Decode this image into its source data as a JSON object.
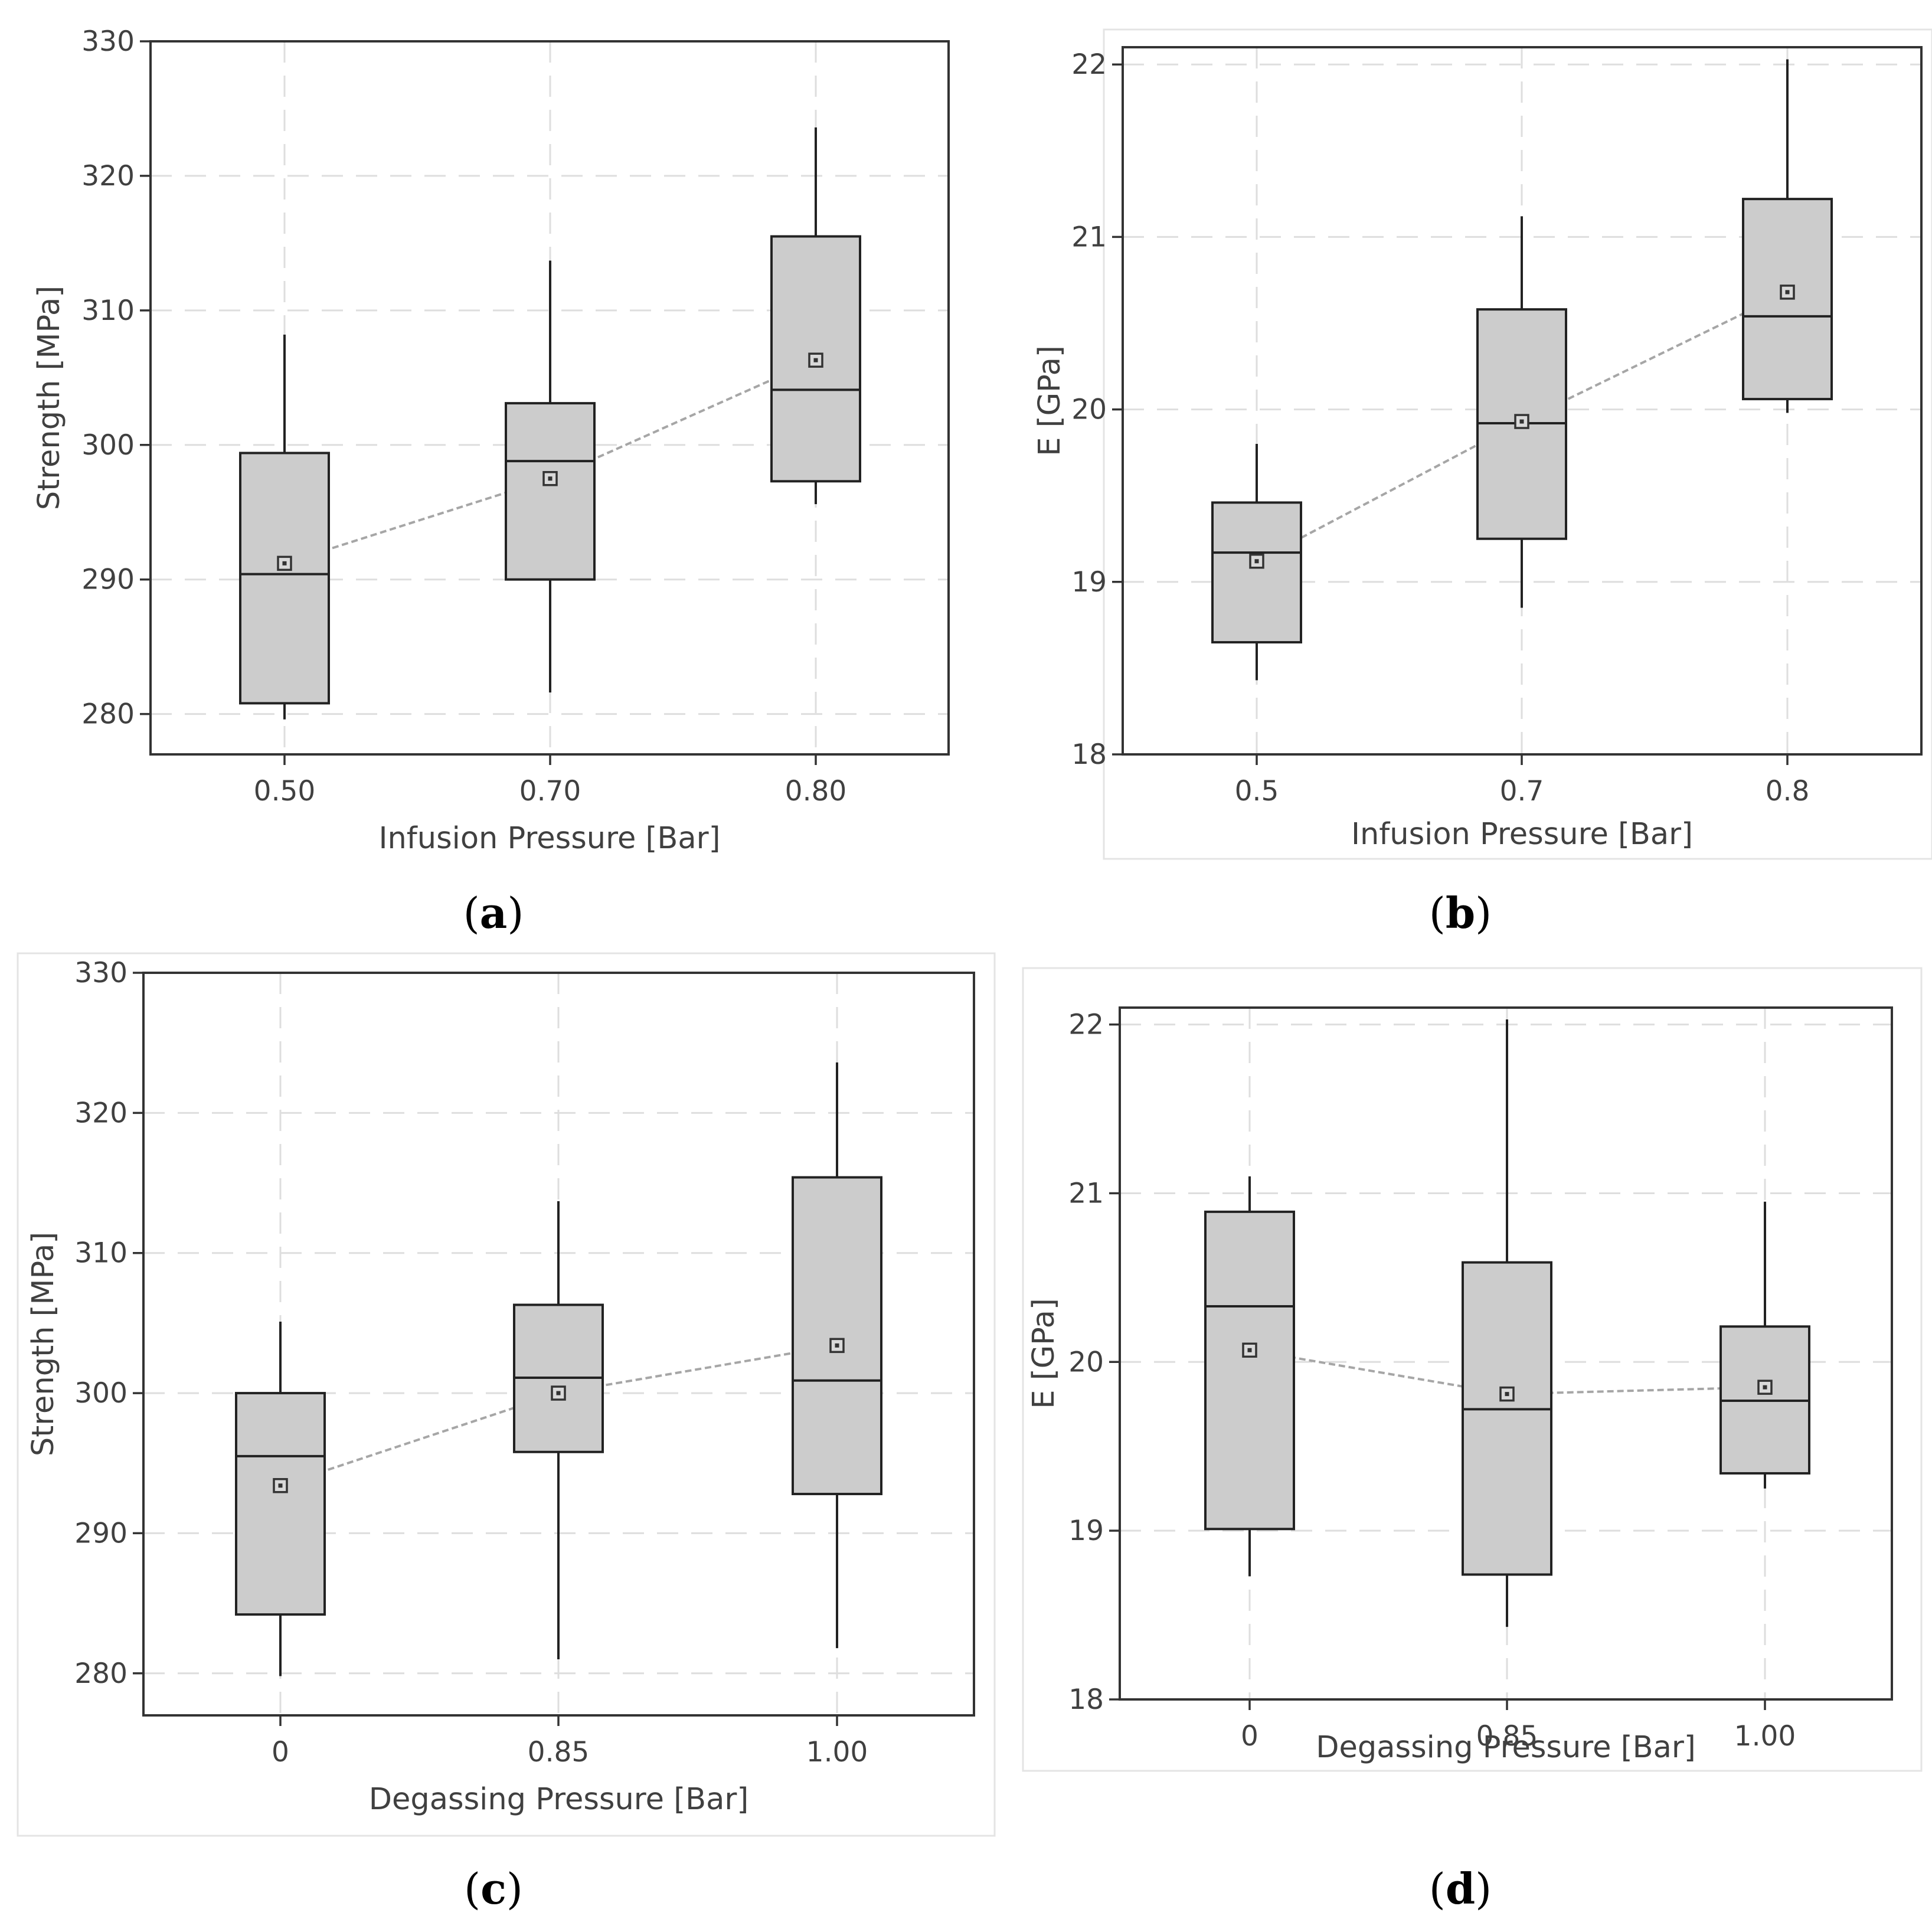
{
  "style": {
    "box_fill": "#cccccc",
    "box_stroke": "#222222",
    "grid_color": "#dedede",
    "mean_line_color": "#a6a6a6",
    "frame_color": "#333333"
  },
  "chart_data": [
    {
      "panel": "a",
      "type": "box",
      "xlabel": "Infusion Pressure [Bar]",
      "ylabel": "Strength [MPa]",
      "ylim": [
        277,
        330
      ],
      "yticks": [
        280,
        290,
        300,
        310,
        320,
        330
      ],
      "categories": [
        "0.50",
        "0.70",
        "0.80"
      ],
      "boxes": [
        {
          "min": 279.6,
          "q1": 280.8,
          "median": 290.4,
          "q3": 299.4,
          "max": 308.2,
          "mean": 291.2
        },
        {
          "min": 281.6,
          "q1": 290.0,
          "median": 298.8,
          "q3": 303.1,
          "max": 313.7,
          "mean": 297.5
        },
        {
          "min": 295.6,
          "q1": 297.3,
          "median": 304.1,
          "q3": 315.5,
          "max": 323.6,
          "mean": 306.3
        }
      ]
    },
    {
      "panel": "b",
      "type": "box",
      "xlabel": "Infusion Pressure [Bar]",
      "ylabel": "E [GPa]",
      "ylim": [
        18,
        22.1
      ],
      "yticks": [
        18,
        19,
        20,
        21,
        22
      ],
      "categories": [
        "0.5",
        "0.7",
        "0.8"
      ],
      "boxes": [
        {
          "min": 18.43,
          "q1": 18.65,
          "median": 19.17,
          "q3": 19.46,
          "max": 19.8,
          "mean": 19.12
        },
        {
          "min": 18.85,
          "q1": 19.25,
          "median": 19.92,
          "q3": 20.58,
          "max": 21.12,
          "mean": 19.93
        },
        {
          "min": 19.98,
          "q1": 20.06,
          "median": 20.54,
          "q3": 21.22,
          "max": 22.03,
          "mean": 20.68
        }
      ]
    },
    {
      "panel": "c",
      "type": "box",
      "xlabel": "Degassing Pressure [Bar]",
      "ylabel": "Strength [MPa]",
      "ylim": [
        277,
        330
      ],
      "yticks": [
        280,
        290,
        300,
        310,
        320,
        330
      ],
      "categories": [
        "0",
        "0.85",
        "1.00"
      ],
      "boxes": [
        {
          "min": 279.8,
          "q1": 284.2,
          "median": 295.5,
          "q3": 300.0,
          "max": 305.1,
          "mean": 293.4
        },
        {
          "min": 281.0,
          "q1": 295.8,
          "median": 301.1,
          "q3": 306.3,
          "max": 313.7,
          "mean": 300.0
        },
        {
          "min": 281.8,
          "q1": 292.8,
          "median": 300.9,
          "q3": 315.4,
          "max": 323.6,
          "mean": 303.4
        }
      ]
    },
    {
      "panel": "d",
      "type": "box",
      "xlabel": "Degassing Pressure [Bar]",
      "ylabel": "E [GPa]",
      "ylim": [
        18,
        22.1
      ],
      "yticks": [
        18,
        19,
        20,
        21,
        22
      ],
      "categories": [
        "0",
        "0.85",
        "1.00"
      ],
      "boxes": [
        {
          "min": 18.73,
          "q1": 19.01,
          "median": 20.33,
          "q3": 20.89,
          "max": 21.1,
          "mean": 20.07
        },
        {
          "min": 18.43,
          "q1": 18.74,
          "median": 19.72,
          "q3": 20.59,
          "max": 22.03,
          "mean": 19.81
        },
        {
          "min": 19.25,
          "q1": 19.34,
          "median": 19.77,
          "q3": 20.21,
          "max": 20.95,
          "mean": 19.85
        }
      ]
    }
  ],
  "captions": {
    "a": {
      "open": "(",
      "letter": "a",
      "close": ")"
    },
    "b": {
      "open": "(",
      "letter": "b",
      "close": ")"
    },
    "c": {
      "open": "(",
      "letter": "c",
      "close": ")"
    },
    "d": {
      "open": "(",
      "letter": "d",
      "close": ")"
    }
  }
}
